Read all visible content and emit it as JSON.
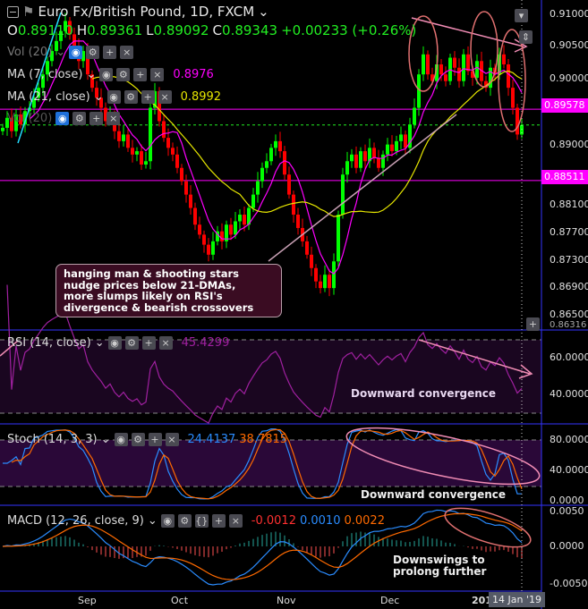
{
  "header": {
    "symbol_title": "Euro Fx/British Pound, 1D, FXCM",
    "ohlc": {
      "o_label": "O",
      "o": "0.89110",
      "h_label": "H",
      "h": "0.89361",
      "l_label": "L",
      "l": "0.89092",
      "c_label": "C",
      "c": "0.89343",
      "change": "+0.00233 (+0.26%)"
    }
  },
  "legends": {
    "vol": "Vol (20)",
    "ma7": {
      "label": "MA (7, close)",
      "value": "0.8976",
      "color": "#ff00ff"
    },
    "ma21": {
      "label": "MA (21, close)",
      "value": "0.8992",
      "color": "#e6e600"
    },
    "rsi": {
      "label": "RSI (14, close)",
      "value": "45.4299",
      "color": "#a020a0"
    },
    "stoch": {
      "label": "Stoch (14, 3, 3)",
      "k": "24.4137",
      "d": "38.7815",
      "k_color": "#2a8cff",
      "d_color": "#ff6a00"
    },
    "macd": {
      "label": "MACD (12, 26, close, 9)",
      "hist": "-0.0012",
      "macd": "0.0010",
      "signal": "0.0022"
    }
  },
  "price_axis": {
    "ticks": [
      "0.91000",
      "0.90500",
      "0.90000",
      "0.89000",
      "0.88100",
      "0.87700",
      "0.87300",
      "0.86900",
      "0.86500"
    ],
    "tags": [
      {
        "value": "0.89578",
        "color": "#ff00ff"
      },
      {
        "value": "0.88511",
        "color": "#ff00ff"
      }
    ],
    "bottom_value": "0.86316"
  },
  "rsi_axis": [
    "60.0000",
    "40.0000"
  ],
  "stoch_axis": [
    "80.0000",
    "40.0000",
    "0.0000"
  ],
  "macd_axis": [
    "0.0050",
    "0.0000",
    "-0.0050"
  ],
  "time_axis": {
    "labels": [
      "Sep",
      "Oct",
      "Nov",
      "Dec",
      "201"
    ],
    "cursor_label": "14 Jan '19"
  },
  "annotations": {
    "callout": [
      "hanging man & shooting stars",
      "nudge prices below 21-DMAs,",
      "more slumps likely on RSI's",
      "divergence & bearish crossovers"
    ],
    "rsi_note": "Downward convergence",
    "stoch_note": "Downward convergence",
    "macd_note": [
      "Downswings to",
      "prolong further"
    ]
  },
  "colors": {
    "up": "#00ff00",
    "down": "#ff0000",
    "annotation": "#f08cb4",
    "axis": "#3333ff"
  },
  "chart_data": {
    "type": "candlestick",
    "title": "Euro Fx/British Pound, 1D, FXCM",
    "x_range": [
      "Aug 2018",
      "14 Jan 2019"
    ],
    "ylim": [
      0.8632,
      0.9115
    ],
    "closes": [
      0.893,
      0.8945,
      0.8925,
      0.895,
      0.8935,
      0.8955,
      0.896,
      0.8975,
      0.899,
      0.901,
      0.903,
      0.9045,
      0.906,
      0.9075,
      0.909,
      0.907,
      0.905,
      0.903,
      0.9045,
      0.901,
      0.899,
      0.8975,
      0.896,
      0.894,
      0.895,
      0.8925,
      0.891,
      0.892,
      0.89,
      0.889,
      0.8895,
      0.8875,
      0.888,
      0.896,
      0.8985,
      0.894,
      0.8915,
      0.89,
      0.889,
      0.887,
      0.885,
      0.883,
      0.881,
      0.8785,
      0.877,
      0.8755,
      0.874,
      0.876,
      0.8775,
      0.876,
      0.8785,
      0.877,
      0.879,
      0.88,
      0.8785,
      0.881,
      0.883,
      0.885,
      0.887,
      0.888,
      0.89,
      0.891,
      0.8895,
      0.886,
      0.883,
      0.88,
      0.878,
      0.876,
      0.874,
      0.872,
      0.87,
      0.869,
      0.871,
      0.869,
      0.873,
      0.88,
      0.886,
      0.888,
      0.889,
      0.887,
      0.8895,
      0.888,
      0.89,
      0.8885,
      0.887,
      0.889,
      0.8905,
      0.8895,
      0.891,
      0.892,
      0.89,
      0.8935,
      0.896,
      0.901,
      0.904,
      0.901,
      0.9,
      0.9025,
      0.901,
      0.9,
      0.9035,
      0.902,
      0.9,
      0.904,
      0.9015,
      0.9005,
      0.903,
      0.9,
      0.899,
      0.902,
      0.901,
      0.904,
      0.9025,
      0.899,
      0.896,
      0.892,
      0.8934
    ],
    "horizontal_lines": [
      0.89578,
      0.88511,
      0.89343
    ],
    "indicators": [
      "MA 7",
      "MA 21",
      "RSI 14",
      "Stoch 14,3,3",
      "MACD 12,26,9"
    ]
  }
}
